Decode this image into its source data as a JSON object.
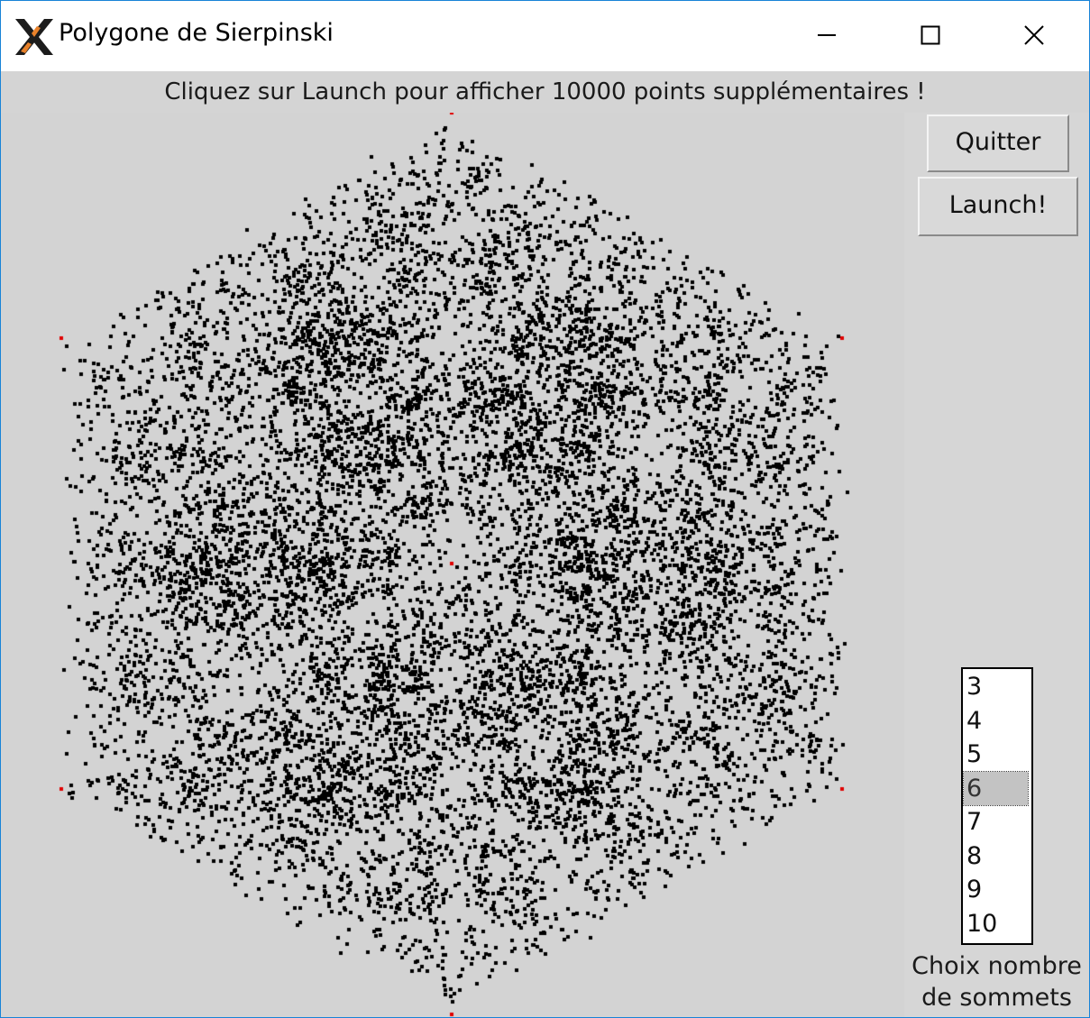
{
  "window": {
    "title": "Polygone de Sierpinski",
    "icon": "x-window-system-icon",
    "controls": [
      "minimize-icon",
      "maximize-icon",
      "close-icon"
    ]
  },
  "status": {
    "message": "Cliquez sur Launch pour afficher 10000 points supplémentaires !"
  },
  "buttons": {
    "quit_label": "Quitter",
    "launch_label": "Launch!"
  },
  "sides": {
    "options": [
      "3",
      "4",
      "5",
      "6",
      "7",
      "8",
      "9",
      "10"
    ],
    "selected": "6",
    "caption_line1": "Choix nombre",
    "caption_line2": "de sommets"
  },
  "plot": {
    "polygon_sides": 6,
    "point_count": 10000,
    "point_color": "#000000",
    "vertex_color": "#e00000",
    "background_color": "#d3d3d3"
  }
}
